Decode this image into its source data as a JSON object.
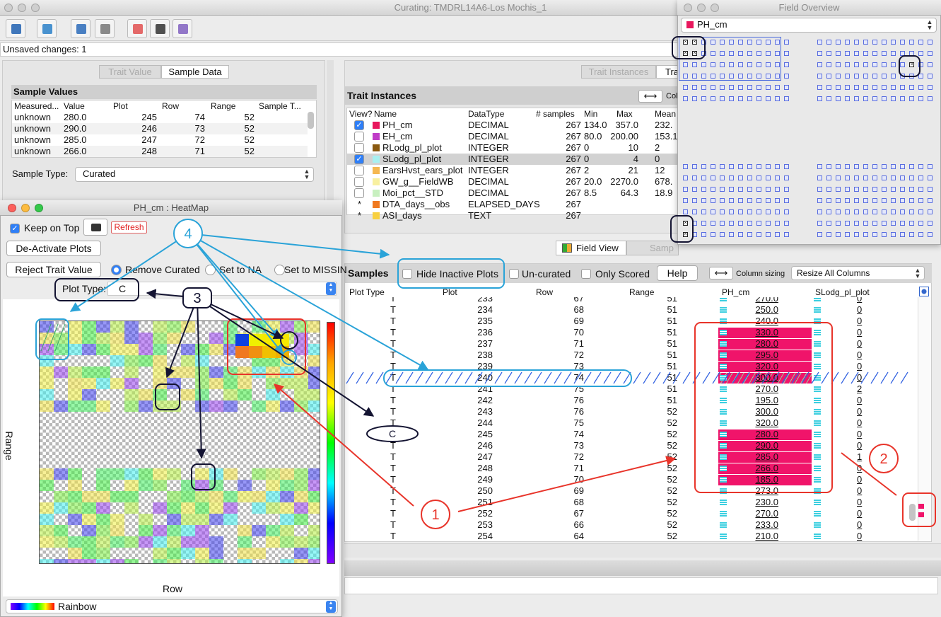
{
  "main_window": {
    "title": "Curating: TMDRL14A6-Los Mochis_1",
    "status": "Unsaved changes: 1"
  },
  "sample_data": {
    "tabs": [
      "Trait Value",
      "Sample Data"
    ],
    "title": "Sample Values",
    "columns": [
      "Measured...",
      "Value",
      "Plot",
      "Row",
      "Range",
      "Sample T..."
    ],
    "rows": [
      [
        "unknown",
        "280.0",
        "245",
        "74",
        "52"
      ],
      [
        "unknown",
        "290.0",
        "246",
        "73",
        "52"
      ],
      [
        "unknown",
        "285.0",
        "247",
        "72",
        "52"
      ],
      [
        "unknown",
        "266.0",
        "248",
        "71",
        "52"
      ]
    ],
    "sample_type_label": "Sample Type:",
    "sample_type": "Curated"
  },
  "heatmap": {
    "title": "PH_cm : HeatMap",
    "keep_on_top": "Keep on Top",
    "refresh": "Refresh",
    "deactivate": "De-Activate Plots",
    "reject": "Reject Trait Value",
    "options": [
      "Remove Curated",
      "Set to NA",
      "Set to MISSIN"
    ],
    "plot_type_label": "Plot Type:",
    "plot_type": "C",
    "y_label": "Range",
    "x_label": "Row",
    "palette": "Rainbow"
  },
  "trait_instances": {
    "tabs": [
      "Trait Instances",
      "Tra"
    ],
    "title": "Trait Instances",
    "column_sizing": "Col",
    "columns": [
      "View?",
      "Name",
      "DataType",
      "# samples",
      "Min",
      "Max",
      "Mean"
    ],
    "rows": [
      {
        "view": true,
        "color": "#e8175d",
        "name": "PH_cm",
        "datatype": "DECIMAL",
        "samples": "267",
        "min": "134.0",
        "max": "357.0",
        "mean": "232."
      },
      {
        "view": false,
        "color": "#c03cc8",
        "name": "EH_cm",
        "datatype": "DECIMAL",
        "samples": "267",
        "min": "80.0",
        "max": "200.00",
        "mean": "153.1"
      },
      {
        "view": false,
        "color": "#8a5a10",
        "name": "RLodg_pl_plot",
        "datatype": "INTEGER",
        "samples": "267",
        "min": "0",
        "max": "10",
        "mean": "2"
      },
      {
        "view": true,
        "color": "#a8f0f0",
        "name": "SLodg_pl_plot",
        "datatype": "INTEGER",
        "samples": "267",
        "min": "0",
        "max": "4",
        "mean": "0"
      },
      {
        "view": false,
        "color": "#f5b851",
        "name": "EarsHvst_ears_plot",
        "datatype": "INTEGER",
        "samples": "267",
        "min": "2",
        "max": "21",
        "mean": "12"
      },
      {
        "view": false,
        "color": "#f8f0a0",
        "name": "GW_g__FieldWB",
        "datatype": "DECIMAL",
        "samples": "267",
        "min": "20.0",
        "max": "2270.0",
        "mean": "678."
      },
      {
        "view": false,
        "color": "#c8f0c0",
        "name": "Moi_pct__STD",
        "datatype": "DECIMAL",
        "samples": "267",
        "min": "8.5",
        "max": "64.3",
        "mean": "18.9"
      },
      {
        "view": "*",
        "color": "#f07a20",
        "name": "DTA_days__obs",
        "datatype": "ELAPSED_DAYS",
        "samples": "267",
        "min": null,
        "max": null,
        "mean": null
      },
      {
        "view": "*",
        "color": "#f8d040",
        "name": "ASI_days",
        "datatype": "TEXT",
        "samples": "267",
        "min": null,
        "max": null,
        "mean": null
      }
    ],
    "selected_row": 3
  },
  "field_view_tabs": [
    "Field View",
    "Samp"
  ],
  "samples": {
    "title": "Samples",
    "options": [
      "Hide Inactive Plots",
      "Un-curated",
      "Only Scored"
    ],
    "help": "Help",
    "column_sizing": "Column sizing",
    "resize": "Resize All Columns",
    "columns": [
      "Plot Type",
      "Plot",
      "Row",
      "Range",
      "PH_cm",
      "SLodg_pl_plot"
    ],
    "rows": [
      [
        "T",
        "233",
        "67",
        "51",
        "270.0",
        "0"
      ],
      [
        "T",
        "234",
        "68",
        "51",
        "250.0",
        "0"
      ],
      [
        "T",
        "235",
        "69",
        "51",
        "240.0",
        "0"
      ],
      [
        "T",
        "236",
        "70",
        "51",
        "330.0",
        "0"
      ],
      [
        "T",
        "237",
        "71",
        "51",
        "280.0",
        "0"
      ],
      [
        "T",
        "238",
        "72",
        "51",
        "295.0",
        "0"
      ],
      [
        "T",
        "239",
        "73",
        "51",
        "320.0",
        "0"
      ],
      [
        "T",
        "240",
        "74",
        "51",
        "300.0",
        "0"
      ],
      [
        "T",
        "241",
        "75",
        "51",
        "270.0",
        "2"
      ],
      [
        "T",
        "242",
        "76",
        "51",
        "195.0",
        "0"
      ],
      [
        "T",
        "243",
        "76",
        "52",
        "300.0",
        "0"
      ],
      [
        "T",
        "244",
        "75",
        "52",
        "320.0",
        "0"
      ],
      [
        null,
        "245",
        "74",
        "52",
        "280.0",
        "0"
      ],
      [
        "T",
        "246",
        "73",
        "52",
        "290.0",
        "0"
      ],
      [
        "T",
        "247",
        "72",
        "52",
        "285.0",
        "1"
      ],
      [
        "T",
        "248",
        "71",
        "52",
        "266.0",
        "0"
      ],
      [
        "T",
        "249",
        "70",
        "52",
        "185.0",
        "0"
      ],
      [
        "T",
        "250",
        "69",
        "52",
        "273.0",
        "0"
      ],
      [
        "T",
        "251",
        "68",
        "52",
        "230.0",
        "0"
      ],
      [
        "T",
        "252",
        "67",
        "52",
        "270.0",
        "0"
      ],
      [
        "T",
        "253",
        "66",
        "52",
        "233.0",
        "0"
      ],
      [
        "T",
        "254",
        "64",
        "52",
        "210.0",
        "0"
      ]
    ],
    "highlighted_rows": [
      3,
      4,
      5,
      6,
      7,
      12,
      13,
      14,
      15,
      16
    ],
    "inactive_rows": [
      7
    ]
  },
  "field_overview": {
    "title": "Field Overview",
    "trait": "PH_cm"
  },
  "annotations": {
    "one": "1",
    "two": "2",
    "three": "3",
    "four": "4",
    "plot_type": "C"
  }
}
